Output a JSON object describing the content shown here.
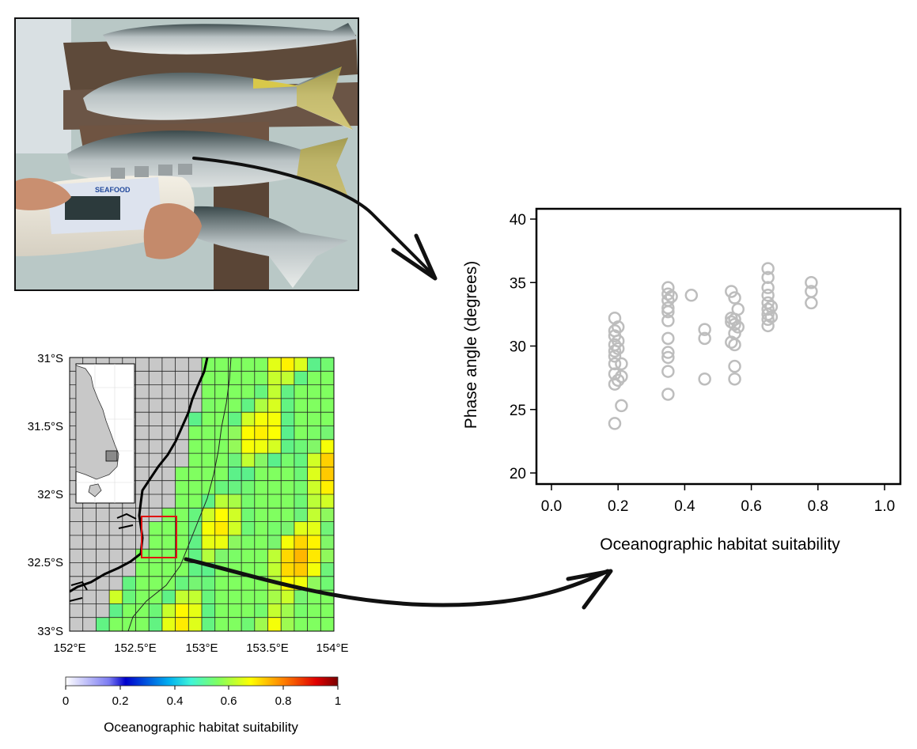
{
  "photo": {
    "device_brand": "SEAFOOD"
  },
  "map": {
    "lat_ticks": [
      "31°S",
      "31.5°S",
      "32°S",
      "32.5°S",
      "33°S"
    ],
    "lon_ticks": [
      "152°E",
      "152.5°E",
      "153°E",
      "153.5°E",
      "154°E"
    ],
    "colorbar": {
      "ticks": [
        "0",
        "0.2",
        "0.4",
        "0.6",
        "0.8",
        "1"
      ],
      "label": "Oceanographic habitat suitability"
    }
  },
  "chart_data": {
    "type": "scatter",
    "xlabel": "Oceanographic habitat suitability",
    "ylabel": "Phase angle (degrees)",
    "xlim": [
      0.0,
      1.0
    ],
    "ylim": [
      20,
      40
    ],
    "x_ticks": [
      "0.0",
      "0.2",
      "0.4",
      "0.6",
      "0.8",
      "1.0"
    ],
    "y_ticks": [
      "20",
      "25",
      "30",
      "35",
      "40"
    ],
    "grid": false,
    "marker": "open-circle",
    "color": "#bdbdbd",
    "points": [
      {
        "x": 0.19,
        "y": 32.2
      },
      {
        "x": 0.19,
        "y": 31.2
      },
      {
        "x": 0.19,
        "y": 30.8
      },
      {
        "x": 0.19,
        "y": 30.1
      },
      {
        "x": 0.19,
        "y": 29.6
      },
      {
        "x": 0.19,
        "y": 29.2
      },
      {
        "x": 0.19,
        "y": 28.6
      },
      {
        "x": 0.19,
        "y": 27.8
      },
      {
        "x": 0.19,
        "y": 27.0
      },
      {
        "x": 0.19,
        "y": 23.9
      },
      {
        "x": 0.2,
        "y": 31.5
      },
      {
        "x": 0.2,
        "y": 30.4
      },
      {
        "x": 0.2,
        "y": 29.8
      },
      {
        "x": 0.2,
        "y": 27.3
      },
      {
        "x": 0.21,
        "y": 28.6
      },
      {
        "x": 0.21,
        "y": 27.6
      },
      {
        "x": 0.21,
        "y": 25.3
      },
      {
        "x": 0.35,
        "y": 34.6
      },
      {
        "x": 0.35,
        "y": 34.1
      },
      {
        "x": 0.35,
        "y": 33.6
      },
      {
        "x": 0.35,
        "y": 33.0
      },
      {
        "x": 0.35,
        "y": 32.7
      },
      {
        "x": 0.35,
        "y": 32.0
      },
      {
        "x": 0.35,
        "y": 30.6
      },
      {
        "x": 0.35,
        "y": 29.5
      },
      {
        "x": 0.35,
        "y": 29.1
      },
      {
        "x": 0.35,
        "y": 28.0
      },
      {
        "x": 0.35,
        "y": 26.2
      },
      {
        "x": 0.36,
        "y": 33.9
      },
      {
        "x": 0.42,
        "y": 34.0
      },
      {
        "x": 0.46,
        "y": 31.3
      },
      {
        "x": 0.46,
        "y": 30.6
      },
      {
        "x": 0.46,
        "y": 27.4
      },
      {
        "x": 0.54,
        "y": 34.3
      },
      {
        "x": 0.54,
        "y": 32.2
      },
      {
        "x": 0.54,
        "y": 31.9
      },
      {
        "x": 0.54,
        "y": 30.3
      },
      {
        "x": 0.55,
        "y": 33.8
      },
      {
        "x": 0.55,
        "y": 32.1
      },
      {
        "x": 0.55,
        "y": 31.7
      },
      {
        "x": 0.55,
        "y": 31.0
      },
      {
        "x": 0.55,
        "y": 30.1
      },
      {
        "x": 0.55,
        "y": 28.4
      },
      {
        "x": 0.55,
        "y": 27.4
      },
      {
        "x": 0.56,
        "y": 32.9
      },
      {
        "x": 0.56,
        "y": 31.5
      },
      {
        "x": 0.65,
        "y": 36.1
      },
      {
        "x": 0.65,
        "y": 35.4
      },
      {
        "x": 0.65,
        "y": 34.6
      },
      {
        "x": 0.65,
        "y": 34.0
      },
      {
        "x": 0.65,
        "y": 33.4
      },
      {
        "x": 0.65,
        "y": 32.9
      },
      {
        "x": 0.65,
        "y": 32.5
      },
      {
        "x": 0.65,
        "y": 32.1
      },
      {
        "x": 0.65,
        "y": 31.6
      },
      {
        "x": 0.66,
        "y": 33.1
      },
      {
        "x": 0.66,
        "y": 32.3
      },
      {
        "x": 0.78,
        "y": 35.0
      },
      {
        "x": 0.78,
        "y": 34.3
      },
      {
        "x": 0.78,
        "y": 33.4
      }
    ]
  }
}
